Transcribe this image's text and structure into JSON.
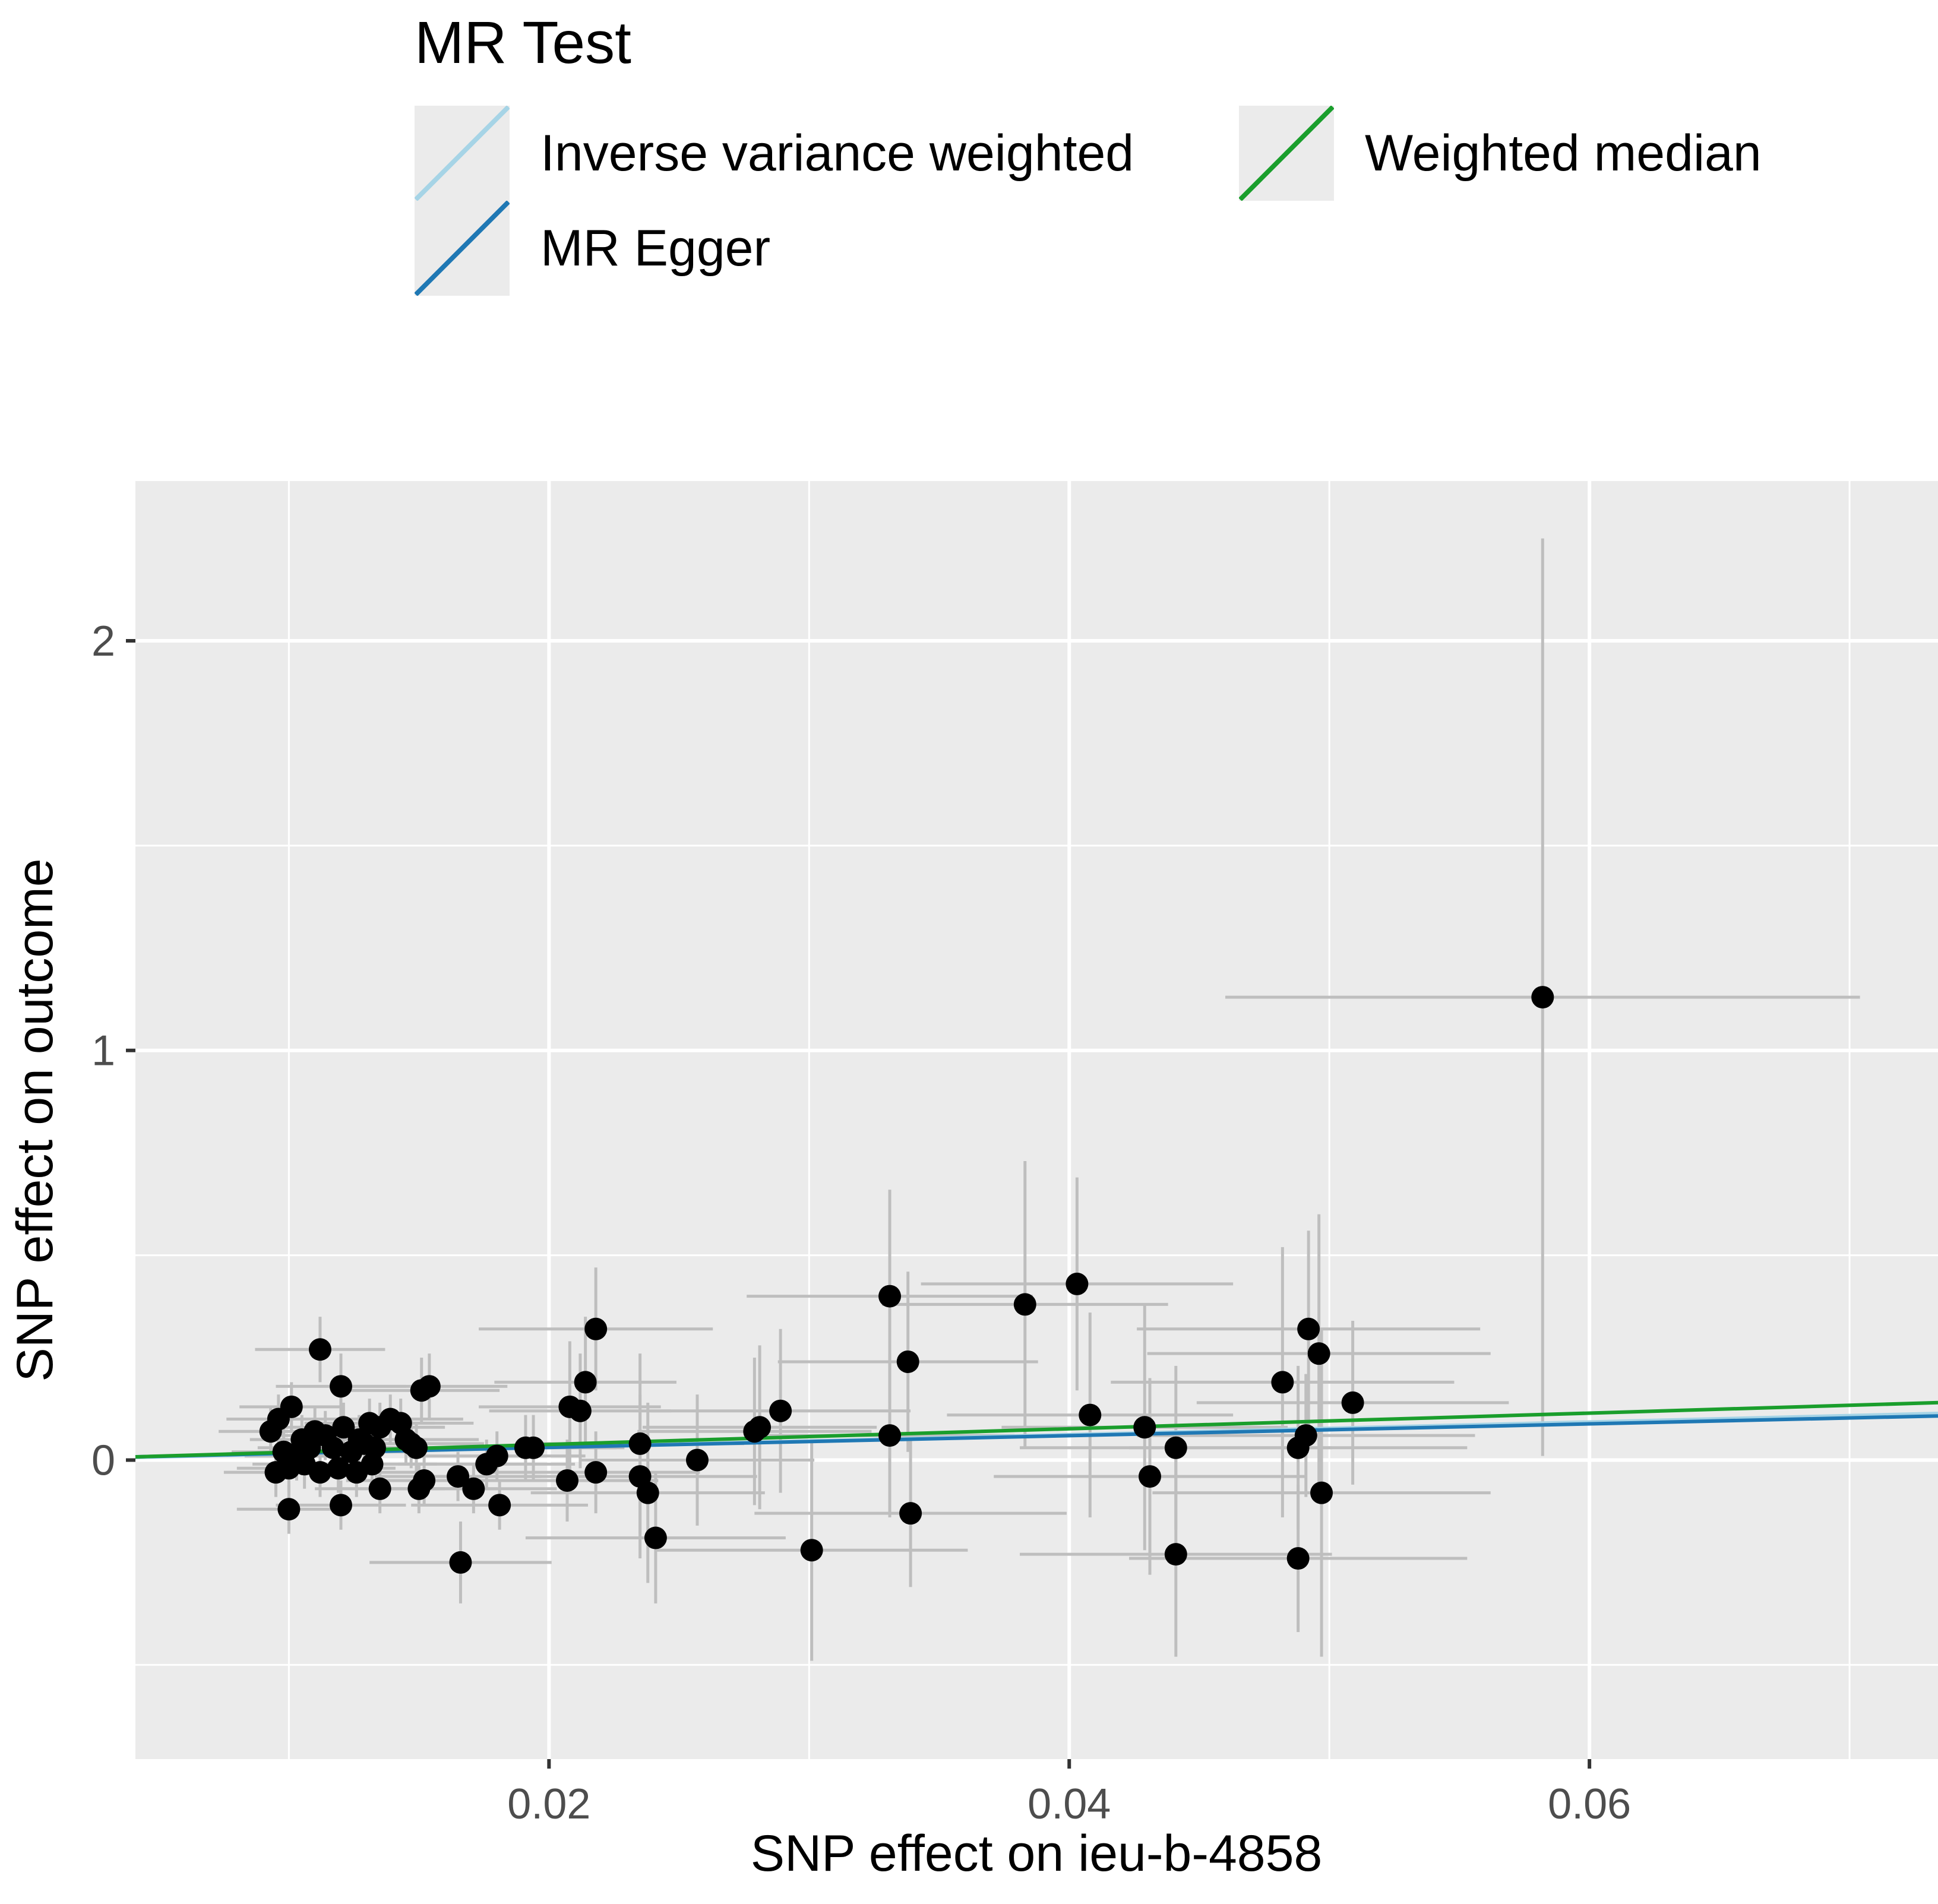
{
  "chart_data": {
    "type": "scatter",
    "xlabel": "SNP effect on ieu-b-4858",
    "ylabel": "SNP effect on outcome",
    "xlim": [
      0.0041,
      0.0734
    ],
    "ylim": [
      -0.73,
      2.39
    ],
    "x_ticks": [
      {
        "value": 0.02,
        "label": "0.02"
      },
      {
        "value": 0.04,
        "label": "0.04"
      },
      {
        "value": 0.06,
        "label": "0.06"
      }
    ],
    "y_ticks": [
      {
        "value": 0,
        "label": "0"
      },
      {
        "value": 1,
        "label": "1"
      },
      {
        "value": 2,
        "label": "2"
      }
    ],
    "grid": true,
    "legend": {
      "title": "MR Test",
      "position": "top",
      "entries": [
        {
          "name": "Inverse variance weighted",
          "color": "#a6d4e6"
        },
        {
          "name": "MR Egger",
          "color": "#1f78b4"
        },
        {
          "name": "Weighted median",
          "color": "#1a9e2c"
        }
      ]
    },
    "lines": [
      {
        "name": "Inverse variance weighted",
        "color": "#a6d4e6",
        "slope": 1.55,
        "intercept": 0.0
      },
      {
        "name": "MR Egger",
        "color": "#1f78b4",
        "slope": 1.44,
        "intercept": 0.002
      },
      {
        "name": "Weighted median",
        "color": "#1a9e2c",
        "slope": 1.91,
        "intercept": 0.0
      }
    ],
    "error_bar_color": "#bebebe",
    "point_color": "#000000",
    "points": [
      {
        "x": 0.0582,
        "y": 1.13,
        "xerr": 0.0122,
        "yerr": 1.12
      },
      {
        "x": 0.0403,
        "y": 0.43,
        "xerr": 0.006,
        "yerr": 0.26
      },
      {
        "x": 0.0383,
        "y": 0.38,
        "xerr": 0.0055,
        "yerr": 0.35
      },
      {
        "x": 0.0331,
        "y": 0.4,
        "xerr": 0.0055,
        "yerr": 0.26
      },
      {
        "x": 0.0338,
        "y": 0.24,
        "xerr": 0.005,
        "yerr": 0.22
      },
      {
        "x": 0.0218,
        "y": 0.32,
        "xerr": 0.0045,
        "yerr": 0.15
      },
      {
        "x": 0.0492,
        "y": 0.32,
        "xerr": 0.0066,
        "yerr": 0.24
      },
      {
        "x": 0.0496,
        "y": 0.26,
        "xerr": 0.0066,
        "yerr": 0.34
      },
      {
        "x": 0.0482,
        "y": 0.19,
        "xerr": 0.0066,
        "yerr": 0.33
      },
      {
        "x": 0.0509,
        "y": 0.14,
        "xerr": 0.006,
        "yerr": 0.2
      },
      {
        "x": 0.0408,
        "y": 0.11,
        "xerr": 0.0055,
        "yerr": 0.25
      },
      {
        "x": 0.0289,
        "y": 0.12,
        "xerr": 0.005,
        "yerr": 0.2
      },
      {
        "x": 0.0281,
        "y": 0.08,
        "xerr": 0.0045,
        "yerr": 0.2
      },
      {
        "x": 0.0279,
        "y": 0.07,
        "xerr": 0.0045,
        "yerr": 0.18
      },
      {
        "x": 0.0331,
        "y": 0.06,
        "xerr": 0.0048,
        "yerr": 0.2
      },
      {
        "x": 0.0429,
        "y": 0.08,
        "xerr": 0.0055,
        "yerr": 0.3
      },
      {
        "x": 0.0441,
        "y": 0.03,
        "xerr": 0.006,
        "yerr": 0.2
      },
      {
        "x": 0.0488,
        "y": 0.03,
        "xerr": 0.0065,
        "yerr": 0.2
      },
      {
        "x": 0.0491,
        "y": 0.06,
        "xerr": 0.0065,
        "yerr": 0.15
      },
      {
        "x": 0.0235,
        "y": 0.04,
        "xerr": 0.004,
        "yerr": 0.22
      },
      {
        "x": 0.0257,
        "y": 0.0,
        "xerr": 0.0045,
        "yerr": 0.16
      },
      {
        "x": 0.0214,
        "y": 0.19,
        "xerr": 0.0035,
        "yerr": 0.16
      },
      {
        "x": 0.0208,
        "y": 0.13,
        "xerr": 0.0035,
        "yerr": 0.16
      },
      {
        "x": 0.0212,
        "y": 0.12,
        "xerr": 0.0035,
        "yerr": 0.14
      },
      {
        "x": 0.0194,
        "y": 0.03,
        "xerr": 0.0035,
        "yerr": 0.08
      },
      {
        "x": 0.0191,
        "y": 0.03,
        "xerr": 0.0035,
        "yerr": 0.08
      },
      {
        "x": 0.0207,
        "y": -0.05,
        "xerr": 0.0035,
        "yerr": 0.1
      },
      {
        "x": 0.0218,
        "y": -0.03,
        "xerr": 0.004,
        "yerr": 0.1
      },
      {
        "x": 0.0235,
        "y": -0.04,
        "xerr": 0.0045,
        "yerr": 0.2
      },
      {
        "x": 0.0238,
        "y": -0.08,
        "xerr": 0.0045,
        "yerr": 0.22
      },
      {
        "x": 0.0241,
        "y": -0.19,
        "xerr": 0.005,
        "yerr": 0.16
      },
      {
        "x": 0.0301,
        "y": -0.22,
        "xerr": 0.006,
        "yerr": 0.27
      },
      {
        "x": 0.0339,
        "y": -0.13,
        "xerr": 0.006,
        "yerr": 0.18
      },
      {
        "x": 0.0431,
        "y": -0.04,
        "xerr": 0.006,
        "yerr": 0.24
      },
      {
        "x": 0.0497,
        "y": -0.08,
        "xerr": 0.0065,
        "yerr": 0.4
      },
      {
        "x": 0.0441,
        "y": -0.23,
        "xerr": 0.006,
        "yerr": 0.25
      },
      {
        "x": 0.0488,
        "y": -0.24,
        "xerr": 0.0065,
        "yerr": 0.18
      },
      {
        "x": 0.0166,
        "y": -0.25,
        "xerr": 0.0035,
        "yerr": 0.1
      },
      {
        "x": 0.0112,
        "y": 0.27,
        "xerr": 0.0025,
        "yerr": 0.08
      },
      {
        "x": 0.012,
        "y": 0.18,
        "xerr": 0.0025,
        "yerr": 0.08
      },
      {
        "x": 0.0151,
        "y": 0.17,
        "xerr": 0.003,
        "yerr": 0.08
      },
      {
        "x": 0.0154,
        "y": 0.18,
        "xerr": 0.003,
        "yerr": 0.08
      },
      {
        "x": 0.0101,
        "y": 0.13,
        "xerr": 0.002,
        "yerr": 0.06
      },
      {
        "x": 0.0096,
        "y": 0.1,
        "xerr": 0.002,
        "yerr": 0.06
      },
      {
        "x": 0.0093,
        "y": 0.07,
        "xerr": 0.002,
        "yerr": 0.06
      },
      {
        "x": 0.0105,
        "y": 0.05,
        "xerr": 0.002,
        "yerr": 0.06
      },
      {
        "x": 0.011,
        "y": 0.07,
        "xerr": 0.0022,
        "yerr": 0.06
      },
      {
        "x": 0.0114,
        "y": 0.06,
        "xerr": 0.0022,
        "yerr": 0.06
      },
      {
        "x": 0.0121,
        "y": 0.08,
        "xerr": 0.0025,
        "yerr": 0.06
      },
      {
        "x": 0.0127,
        "y": 0.05,
        "xerr": 0.0025,
        "yerr": 0.06
      },
      {
        "x": 0.0131,
        "y": 0.09,
        "xerr": 0.0025,
        "yerr": 0.06
      },
      {
        "x": 0.0135,
        "y": 0.08,
        "xerr": 0.0025,
        "yerr": 0.06
      },
      {
        "x": 0.0139,
        "y": 0.1,
        "xerr": 0.0028,
        "yerr": 0.06
      },
      {
        "x": 0.0143,
        "y": 0.09,
        "xerr": 0.0028,
        "yerr": 0.06
      },
      {
        "x": 0.0147,
        "y": 0.04,
        "xerr": 0.0028,
        "yerr": 0.06
      },
      {
        "x": 0.0098,
        "y": 0.02,
        "xerr": 0.002,
        "yerr": 0.06
      },
      {
        "x": 0.0103,
        "y": 0.01,
        "xerr": 0.002,
        "yerr": 0.06
      },
      {
        "x": 0.0108,
        "y": 0.03,
        "xerr": 0.002,
        "yerr": 0.06
      },
      {
        "x": 0.0117,
        "y": 0.03,
        "xerr": 0.0022,
        "yerr": 0.06
      },
      {
        "x": 0.0124,
        "y": 0.02,
        "xerr": 0.0025,
        "yerr": 0.06
      },
      {
        "x": 0.0129,
        "y": 0.04,
        "xerr": 0.0025,
        "yerr": 0.06
      },
      {
        "x": 0.0133,
        "y": 0.03,
        "xerr": 0.0025,
        "yerr": 0.06
      },
      {
        "x": 0.0095,
        "y": -0.03,
        "xerr": 0.002,
        "yerr": 0.06
      },
      {
        "x": 0.01,
        "y": -0.02,
        "xerr": 0.002,
        "yerr": 0.06
      },
      {
        "x": 0.0106,
        "y": -0.01,
        "xerr": 0.002,
        "yerr": 0.06
      },
      {
        "x": 0.0112,
        "y": -0.03,
        "xerr": 0.0022,
        "yerr": 0.06
      },
      {
        "x": 0.0119,
        "y": -0.02,
        "xerr": 0.0022,
        "yerr": 0.06
      },
      {
        "x": 0.0126,
        "y": -0.03,
        "xerr": 0.0025,
        "yerr": 0.06
      },
      {
        "x": 0.0132,
        "y": -0.01,
        "xerr": 0.0025,
        "yerr": 0.06
      },
      {
        "x": 0.01,
        "y": -0.12,
        "xerr": 0.002,
        "yerr": 0.06
      },
      {
        "x": 0.012,
        "y": -0.11,
        "xerr": 0.0025,
        "yerr": 0.06
      },
      {
        "x": 0.0135,
        "y": -0.07,
        "xerr": 0.0025,
        "yerr": 0.06
      },
      {
        "x": 0.015,
        "y": -0.07,
        "xerr": 0.003,
        "yerr": 0.06
      },
      {
        "x": 0.0152,
        "y": -0.05,
        "xerr": 0.003,
        "yerr": 0.06
      },
      {
        "x": 0.0165,
        "y": -0.04,
        "xerr": 0.0032,
        "yerr": 0.06
      },
      {
        "x": 0.0171,
        "y": -0.07,
        "xerr": 0.0032,
        "yerr": 0.06
      },
      {
        "x": 0.0176,
        "y": -0.01,
        "xerr": 0.0034,
        "yerr": 0.06
      },
      {
        "x": 0.0181,
        "y": -0.11,
        "xerr": 0.0034,
        "yerr": 0.06
      },
      {
        "x": 0.018,
        "y": 0.01,
        "xerr": 0.0034,
        "yerr": 0.06
      },
      {
        "x": 0.0145,
        "y": 0.05,
        "xerr": 0.0028,
        "yerr": 0.06
      },
      {
        "x": 0.0149,
        "y": 0.03,
        "xerr": 0.0028,
        "yerr": 0.06
      }
    ]
  }
}
